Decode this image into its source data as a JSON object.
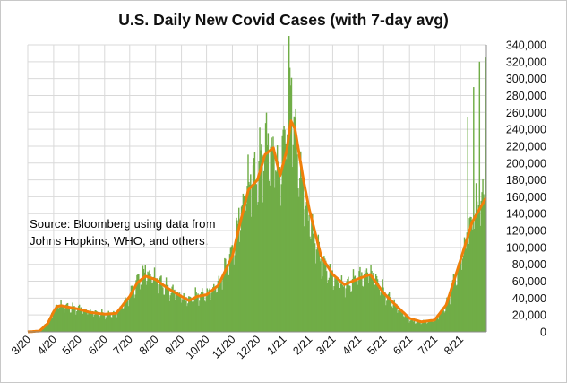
{
  "chart_data": {
    "type": "bar",
    "title": "U.S. Daily New Covid Cases (with 7-day avg)",
    "annotation": [
      "Source:  Bloomberg using data from",
      "Johns Hopkins, WHO, and others."
    ],
    "x_tick_labels": [
      "3/20",
      "4/20",
      "5/20",
      "6/20",
      "7/20",
      "8/20",
      "9/20",
      "10/20",
      "11/20",
      "12/20",
      "1/21",
      "2/21",
      "3/21",
      "4/21",
      "5/21",
      "6/21",
      "7/21",
      "8/21"
    ],
    "y_tick_labels": [
      "0",
      "20,000",
      "40,000",
      "60,000",
      "80,000",
      "100,000",
      "120,000",
      "140,000",
      "160,000",
      "180,000",
      "200,000",
      "220,000",
      "240,000",
      "260,000",
      "280,000",
      "300,000",
      "320,000",
      "340,000"
    ],
    "ylim": [
      0,
      340000
    ],
    "y_axis_position": "right",
    "grid": true,
    "series": [
      {
        "kind": "bars",
        "color": "#70ad47",
        "points": [
          [
            "2020-03-01",
            0
          ],
          [
            "2020-03-15",
            2000
          ],
          [
            "2020-03-25",
            12000
          ],
          [
            "2020-04-01",
            25000
          ],
          [
            "2020-04-05",
            33000
          ],
          [
            "2020-04-10",
            32000
          ],
          [
            "2020-04-20",
            29000
          ],
          [
            "2020-05-01",
            28000
          ],
          [
            "2020-05-15",
            24000
          ],
          [
            "2020-06-01",
            21000
          ],
          [
            "2020-06-15",
            22000
          ],
          [
            "2020-07-01",
            43000
          ],
          [
            "2020-07-10",
            61000
          ],
          [
            "2020-07-20",
            72000
          ],
          [
            "2020-08-01",
            64000
          ],
          [
            "2020-08-15",
            52000
          ],
          [
            "2020-09-01",
            42000
          ],
          [
            "2020-09-10",
            38000
          ],
          [
            "2020-09-20",
            44000
          ],
          [
            "2020-10-01",
            45000
          ],
          [
            "2020-10-15",
            57000
          ],
          [
            "2020-11-01",
            95000
          ],
          [
            "2020-11-10",
            140000
          ],
          [
            "2020-11-20",
            182000
          ],
          [
            "2020-12-01",
            190000
          ],
          [
            "2020-12-10",
            225000
          ],
          [
            "2020-12-20",
            215000
          ],
          [
            "2020-12-28",
            185000
          ],
          [
            "2021-01-05",
            265000
          ],
          [
            "2021-01-10",
            300000
          ],
          [
            "2021-01-15",
            230000
          ],
          [
            "2021-01-25",
            165000
          ],
          [
            "2021-02-01",
            135000
          ],
          [
            "2021-02-15",
            85000
          ],
          [
            "2021-03-01",
            65000
          ],
          [
            "2021-03-15",
            55000
          ],
          [
            "2021-04-01",
            65000
          ],
          [
            "2021-04-15",
            72000
          ],
          [
            "2021-05-01",
            48000
          ],
          [
            "2021-05-15",
            32000
          ],
          [
            "2021-06-01",
            14000
          ],
          [
            "2021-06-15",
            12000
          ],
          [
            "2021-07-01",
            14000
          ],
          [
            "2021-07-15",
            32000
          ],
          [
            "2021-08-01",
            85000
          ],
          [
            "2021-08-15",
            135000
          ],
          [
            "2021-08-31",
            160000
          ]
        ],
        "spike_dates": [
          [
            "2021-08-09",
            255000
          ],
          [
            "2021-08-16",
            290000
          ],
          [
            "2021-08-23",
            320000
          ],
          [
            "2021-08-30",
            325000
          ]
        ]
      },
      {
        "kind": "line",
        "color": "#f07f09",
        "points": [
          [
            "2020-03-01",
            0
          ],
          [
            "2020-03-15",
            1000
          ],
          [
            "2020-03-25",
            10000
          ],
          [
            "2020-04-01",
            24000
          ],
          [
            "2020-04-05",
            30000
          ],
          [
            "2020-04-10",
            31000
          ],
          [
            "2020-04-20",
            29000
          ],
          [
            "2020-05-01",
            27000
          ],
          [
            "2020-05-15",
            23000
          ],
          [
            "2020-06-01",
            21000
          ],
          [
            "2020-06-15",
            22000
          ],
          [
            "2020-07-01",
            42000
          ],
          [
            "2020-07-10",
            58000
          ],
          [
            "2020-07-20",
            66000
          ],
          [
            "2020-08-01",
            62000
          ],
          [
            "2020-08-15",
            52000
          ],
          [
            "2020-09-01",
            42000
          ],
          [
            "2020-09-10",
            37000
          ],
          [
            "2020-09-20",
            42000
          ],
          [
            "2020-10-01",
            44000
          ],
          [
            "2020-10-15",
            55000
          ],
          [
            "2020-11-01",
            90000
          ],
          [
            "2020-11-10",
            128000
          ],
          [
            "2020-11-20",
            168000
          ],
          [
            "2020-12-01",
            180000
          ],
          [
            "2020-12-10",
            210000
          ],
          [
            "2020-12-20",
            218000
          ],
          [
            "2020-12-28",
            185000
          ],
          [
            "2021-01-05",
            215000
          ],
          [
            "2021-01-10",
            250000
          ],
          [
            "2021-01-15",
            240000
          ],
          [
            "2021-01-25",
            180000
          ],
          [
            "2021-02-01",
            145000
          ],
          [
            "2021-02-15",
            90000
          ],
          [
            "2021-03-01",
            68000
          ],
          [
            "2021-03-15",
            56000
          ],
          [
            "2021-04-01",
            63000
          ],
          [
            "2021-04-15",
            68000
          ],
          [
            "2021-05-01",
            46000
          ],
          [
            "2021-05-15",
            32000
          ],
          [
            "2021-06-01",
            16000
          ],
          [
            "2021-06-15",
            12000
          ],
          [
            "2021-07-01",
            14000
          ],
          [
            "2021-07-15",
            32000
          ],
          [
            "2021-08-01",
            85000
          ],
          [
            "2021-08-15",
            130000
          ],
          [
            "2021-08-31",
            158000
          ]
        ]
      }
    ]
  }
}
